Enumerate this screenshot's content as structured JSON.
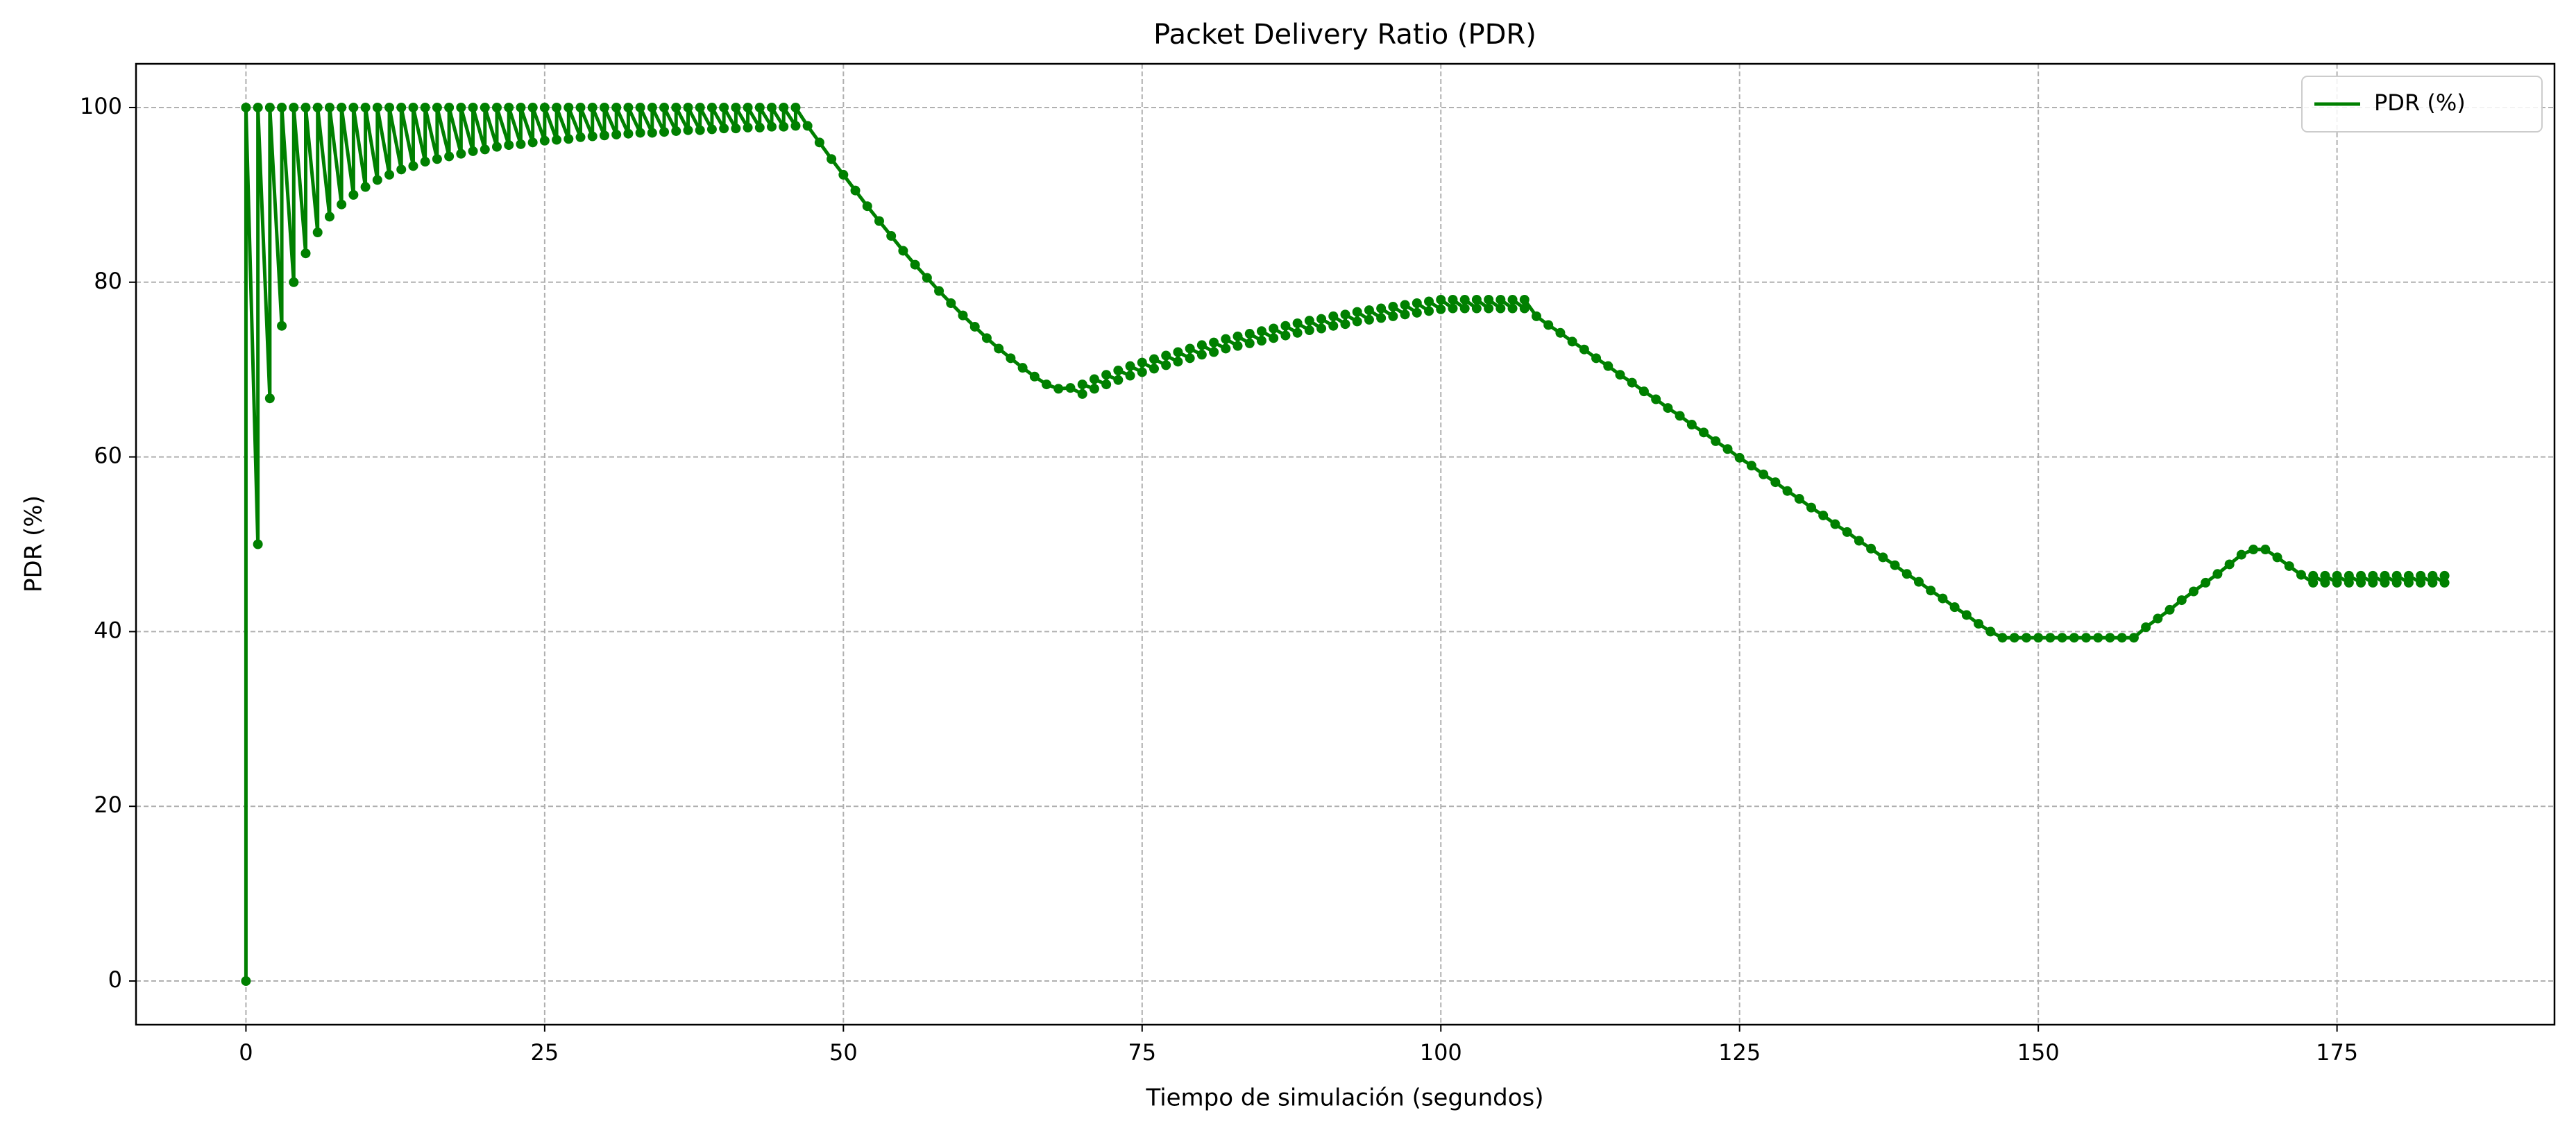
{
  "chart_data": {
    "type": "line",
    "title": "Packet Delivery Ratio (PDR)",
    "x_label": "Tiempo de simulación (segundos)",
    "y_label": "PDR (%)",
    "x": [
      0,
      0,
      1,
      1,
      2,
      2,
      3,
      3,
      4,
      4,
      5,
      5,
      6,
      6,
      7,
      7,
      8,
      8,
      9,
      9,
      10,
      10,
      11,
      11,
      12,
      12,
      13,
      13,
      14,
      14,
      15,
      15,
      16,
      16,
      17,
      17,
      18,
      18,
      19,
      19,
      20,
      20,
      21,
      21,
      22,
      22,
      23,
      23,
      24,
      24,
      25,
      25,
      26,
      26,
      27,
      27,
      28,
      28,
      29,
      29,
      30,
      30,
      31,
      31,
      32,
      32,
      33,
      33,
      34,
      34,
      35,
      35,
      36,
      36,
      37,
      37,
      38,
      38,
      39,
      39,
      40,
      40,
      41,
      41,
      42,
      42,
      43,
      43,
      44,
      44,
      45,
      45,
      46,
      46,
      47,
      48,
      49,
      50,
      51,
      52,
      53,
      54,
      55,
      56,
      57,
      58,
      59,
      60,
      61,
      62,
      63,
      64,
      65,
      66,
      67,
      68,
      69,
      70,
      70,
      71,
      71,
      72,
      72,
      73,
      73,
      74,
      74,
      75,
      75,
      76,
      76,
      77,
      77,
      78,
      78,
      79,
      79,
      80,
      80,
      81,
      81,
      82,
      82,
      83,
      83,
      84,
      84,
      85,
      85,
      86,
      86,
      87,
      87,
      88,
      88,
      89,
      89,
      90,
      90,
      91,
      91,
      92,
      92,
      93,
      93,
      94,
      94,
      95,
      95,
      96,
      96,
      97,
      97,
      98,
      98,
      99,
      99,
      100,
      100,
      101,
      101,
      102,
      102,
      103,
      103,
      104,
      104,
      105,
      105,
      106,
      106,
      107,
      107,
      108,
      109,
      110,
      111,
      112,
      113,
      114,
      115,
      116,
      117,
      118,
      119,
      120,
      121,
      122,
      123,
      124,
      125,
      126,
      127,
      128,
      129,
      130,
      131,
      132,
      133,
      134,
      135,
      136,
      137,
      138,
      139,
      140,
      141,
      142,
      143,
      144,
      145,
      146,
      147,
      148,
      149,
      150,
      151,
      152,
      153,
      154,
      155,
      156,
      157,
      158,
      159,
      160,
      161,
      162,
      163,
      164,
      165,
      166,
      167,
      168,
      169,
      170,
      171,
      172,
      173,
      173,
      174,
      174,
      175,
      175,
      176,
      176,
      177,
      177,
      178,
      178,
      179,
      179,
      180,
      180,
      181,
      181,
      182,
      182,
      183,
      183,
      184,
      184
    ],
    "series": [
      {
        "name": "PDR (%)",
        "color": "#008000",
        "values": [
          0,
          100,
          50,
          100,
          66.7,
          100,
          75,
          100,
          80,
          100,
          83.3,
          100,
          85.7,
          100,
          87.5,
          100,
          88.9,
          100,
          90,
          100,
          90.9,
          100,
          91.7,
          100,
          92.3,
          100,
          92.9,
          100,
          93.3,
          100,
          93.8,
          100,
          94.1,
          100,
          94.4,
          100,
          94.7,
          100,
          95,
          100,
          95.2,
          100,
          95.5,
          100,
          95.7,
          100,
          95.8,
          100,
          96,
          100,
          96.2,
          100,
          96.3,
          100,
          96.4,
          100,
          96.6,
          100,
          96.7,
          100,
          96.8,
          100,
          96.9,
          100,
          97,
          100,
          97.1,
          100,
          97.1,
          100,
          97.2,
          100,
          97.3,
          100,
          97.4,
          100,
          97.4,
          100,
          97.5,
          100,
          97.6,
          100,
          97.6,
          100,
          97.7,
          100,
          97.7,
          100,
          97.8,
          100,
          97.8,
          100,
          97.9,
          100,
          97.9,
          96.0,
          94.1,
          92.3,
          90.5,
          88.7,
          87.0,
          85.3,
          83.6,
          82.0,
          80.5,
          79.0,
          77.6,
          76.2,
          74.9,
          73.6,
          72.4,
          71.3,
          70.2,
          69.2,
          68.3,
          67.8,
          67.9,
          67.2,
          68.3,
          67.8,
          68.9,
          68.3,
          69.4,
          68.8,
          69.9,
          69.3,
          70.4,
          69.7,
          70.8,
          70.1,
          71.2,
          70.5,
          71.6,
          70.9,
          72.0,
          71.3,
          72.4,
          71.7,
          72.8,
          72.0,
          73.1,
          72.4,
          73.5,
          72.7,
          73.8,
          73.0,
          74.1,
          73.3,
          74.4,
          73.6,
          74.7,
          73.9,
          75.0,
          74.2,
          75.3,
          74.5,
          75.6,
          74.7,
          75.8,
          75.0,
          76.1,
          75.2,
          76.3,
          75.5,
          76.6,
          75.7,
          76.8,
          75.9,
          77.0,
          76.1,
          77.2,
          76.3,
          77.4,
          76.5,
          77.6,
          76.7,
          77.8,
          76.9,
          78.0,
          77.0,
          78.0,
          77.0,
          78.0,
          77.0,
          78.0,
          77.0,
          78.0,
          77.0,
          78.0,
          77.0,
          78.0,
          77.0,
          78.0,
          76.1,
          75.1,
          74.2,
          73.2,
          72.3,
          71.3,
          70.4,
          69.4,
          68.5,
          67.5,
          66.6,
          65.6,
          64.7,
          63.7,
          62.8,
          61.8,
          60.9,
          59.9,
          59.0,
          58.0,
          57.1,
          56.1,
          55.2,
          54.2,
          53.3,
          52.3,
          51.4,
          50.4,
          49.5,
          48.5,
          47.6,
          46.6,
          45.7,
          44.7,
          43.8,
          42.8,
          41.9,
          40.9,
          40.0,
          39.3,
          39.3,
          39.3,
          39.3,
          39.3,
          39.3,
          39.3,
          39.3,
          39.3,
          39.3,
          39.3,
          39.3,
          40.5,
          41.5,
          42.5,
          43.6,
          44.6,
          45.6,
          46.6,
          47.7,
          48.8,
          49.4,
          49.4,
          48.5,
          47.5,
          46.5,
          45.6,
          46.4,
          45.6,
          46.4,
          45.6,
          46.4,
          45.6,
          46.4,
          45.6,
          46.4,
          45.6,
          46.4,
          45.6,
          46.4,
          45.6,
          46.4,
          45.6,
          46.4,
          45.6,
          46.4,
          45.6,
          46.4,
          45.6,
          46.4
        ]
      }
    ],
    "xlim": [
      -9.2,
      193.2
    ],
    "ylim": [
      -5,
      105
    ],
    "xticks": [
      0,
      25,
      50,
      75,
      100,
      125,
      150,
      175
    ],
    "yticks": [
      0,
      20,
      40,
      60,
      80,
      100
    ],
    "grid": true,
    "legend": "upper right"
  }
}
